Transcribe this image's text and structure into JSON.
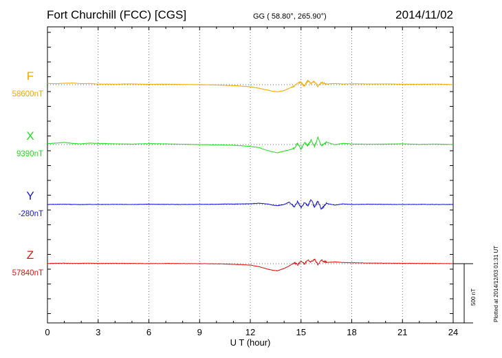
{
  "header": {
    "station": "Fort Churchill (FCC)  [CGS]",
    "coords": "GG ( 58.80°, 265.90°)",
    "date": "2014/11/02"
  },
  "footer": {
    "plotted": "Plotted at 2014/12/03 01:31 UT",
    "scale_label": "500 nT"
  },
  "chart_data": {
    "type": "line",
    "title": "Fort Churchill (FCC)  [CGS]",
    "xlabel": "U T (hour)",
    "ylabel": "",
    "xlim": [
      0,
      24
    ],
    "xticks": [
      0,
      3,
      6,
      9,
      12,
      15,
      18,
      21,
      24
    ],
    "xtick_labels": [
      "0",
      "3",
      "6",
      "9",
      "12",
      "15",
      "18",
      "21",
      "24"
    ],
    "scale_bar_nT": 500,
    "grid": "dotted vertical at 3-hour intervals; dotted horizontal baseline per channel",
    "note": "Each channel is offset vertically; values are deviation from the channel baseline in nT (approximate, read from trace)",
    "series": [
      {
        "name": "F",
        "baseline_label": "58600nT",
        "color": "#f0a800",
        "x": [
          0,
          0.5,
          1,
          1.5,
          2,
          2.5,
          3,
          4,
          5,
          6,
          7,
          8,
          9,
          10,
          10.5,
          11,
          11.5,
          12,
          12.5,
          13,
          13.3,
          13.6,
          14,
          14.3,
          14.6,
          14.8,
          15,
          15.2,
          15.4,
          15.6,
          15.8,
          16,
          16.2,
          16.5,
          17,
          17.5,
          18,
          19,
          20,
          21,
          22,
          23,
          24
        ],
        "values": [
          10,
          8,
          12,
          14,
          8,
          10,
          5,
          4,
          6,
          3,
          4,
          2,
          0,
          -2,
          -5,
          -8,
          -12,
          -18,
          -30,
          -45,
          -55,
          -60,
          -50,
          -30,
          -10,
          15,
          20,
          -10,
          35,
          10,
          30,
          -15,
          20,
          5,
          10,
          5,
          8,
          5,
          6,
          4,
          3,
          5,
          0
        ]
      },
      {
        "name": "X",
        "baseline_label": "9390nT",
        "color": "#22dd22",
        "x": [
          0,
          0.5,
          1,
          1.5,
          2,
          2.5,
          3,
          4,
          5,
          6,
          7,
          8,
          9,
          10,
          10.5,
          11,
          11.5,
          12,
          12.5,
          13,
          13.3,
          13.6,
          14,
          14.3,
          14.6,
          14.8,
          15,
          15.2,
          15.4,
          15.6,
          15.8,
          16,
          16.2,
          16.5,
          17,
          17.5,
          18,
          19,
          20,
          21,
          22,
          23,
          24
        ],
        "values": [
          8,
          12,
          18,
          10,
          6,
          12,
          10,
          6,
          4,
          8,
          6,
          3,
          0,
          -2,
          -4,
          -6,
          -10,
          -15,
          -25,
          -50,
          -60,
          -70,
          -55,
          -45,
          -30,
          10,
          -40,
          20,
          -10,
          40,
          -20,
          60,
          -10,
          20,
          0,
          10,
          5,
          3,
          4,
          6,
          2,
          4,
          0
        ]
      },
      {
        "name": "Y",
        "baseline_label": "-280nT",
        "color": "#1414d2",
        "x": [
          0,
          0.5,
          1,
          1.5,
          2,
          2.5,
          3,
          4,
          5,
          6,
          7,
          8,
          9,
          10,
          10.5,
          11,
          11.5,
          12,
          12.5,
          13,
          13.3,
          13.6,
          14,
          14.3,
          14.6,
          14.8,
          15,
          15.2,
          15.4,
          15.6,
          15.8,
          16,
          16.2,
          16.5,
          17,
          17.5,
          18,
          19,
          20,
          21,
          22,
          23,
          24
        ],
        "values": [
          0,
          1,
          2,
          0,
          -1,
          1,
          0,
          1,
          0,
          2,
          1,
          0,
          1,
          2,
          4,
          3,
          5,
          6,
          10,
          5,
          -5,
          -10,
          0,
          20,
          -20,
          25,
          -30,
          20,
          -15,
          45,
          -25,
          30,
          -40,
          10,
          -5,
          5,
          0,
          2,
          1,
          0,
          1,
          0,
          0
        ]
      },
      {
        "name": "Z",
        "baseline_label": "57840nT",
        "color": "#e01212",
        "x": [
          0,
          0.5,
          1,
          1.5,
          2,
          2.5,
          3,
          4,
          5,
          6,
          7,
          8,
          9,
          10,
          10.5,
          11,
          11.5,
          12,
          12.5,
          13,
          13.3,
          13.6,
          14,
          14.3,
          14.6,
          14.8,
          15,
          15.2,
          15.4,
          15.6,
          15.8,
          16,
          16.2,
          16.5,
          17,
          17.5,
          18,
          19,
          20,
          21,
          22,
          23,
          24
        ],
        "values": [
          2,
          3,
          4,
          2,
          3,
          4,
          2,
          3,
          2,
          1,
          2,
          1,
          0,
          -1,
          -3,
          -5,
          -8,
          -12,
          -25,
          -45,
          -55,
          -60,
          -40,
          -20,
          10,
          -10,
          25,
          -5,
          35,
          15,
          40,
          -10,
          30,
          10,
          15,
          10,
          8,
          5,
          4,
          3,
          2,
          2,
          0
        ]
      }
    ]
  }
}
